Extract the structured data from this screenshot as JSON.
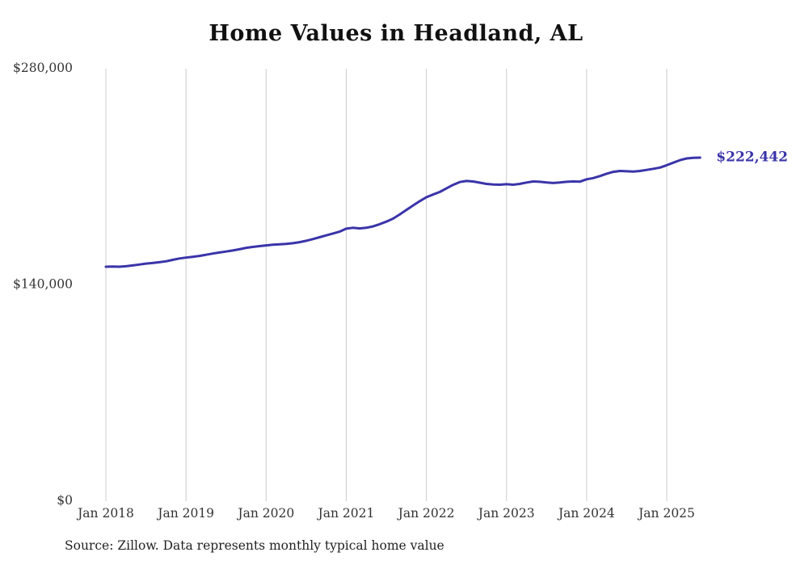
{
  "source": "Source: Zillow. Data represents monthly typical home value",
  "chart_data": {
    "type": "line",
    "title": "Home Values in Headland, AL",
    "xlabel": "",
    "ylabel": "",
    "ylim": [
      0,
      280000
    ],
    "grid": "vertical-year-lines",
    "legend": "none",
    "line_color": "#3a34a9",
    "gridline_color": "#cccccc",
    "text_color": "#333333",
    "end_label": "$222,442",
    "x_start_label": "Jan 2018",
    "x_end_label": "Jun 2025",
    "x_ticks": [
      "Jan 2018",
      "Jan 2019",
      "Jan 2020",
      "Jan 2021",
      "Jan 2022",
      "Jan 2023",
      "Jan 2024",
      "Jan 2025"
    ],
    "x_tick_month_indexes": [
      0,
      12,
      24,
      36,
      48,
      60,
      72,
      84
    ],
    "y_ticks": [
      {
        "value": 0,
        "label": "$0"
      },
      {
        "value": 140000,
        "label": "$140,000"
      },
      {
        "value": 280000,
        "label": "$280,000"
      }
    ],
    "series": [
      {
        "name": "Typical home value (monthly)",
        "values": [
          151800,
          151900,
          151800,
          152100,
          152600,
          153200,
          153800,
          154200,
          154700,
          155300,
          156200,
          157100,
          157700,
          158200,
          158800,
          159500,
          160300,
          161000,
          161600,
          162300,
          163100,
          164000,
          164600,
          165100,
          165600,
          166000,
          166300,
          166600,
          167000,
          167700,
          168600,
          169700,
          170900,
          172100,
          173300,
          174500,
          176400,
          177000,
          176600,
          177000,
          177900,
          179300,
          181000,
          182900,
          185600,
          188500,
          191400,
          194200,
          196800,
          198500,
          200200,
          202500,
          204800,
          206600,
          207300,
          207000,
          206200,
          205400,
          205000,
          204900,
          205200,
          204900,
          205400,
          206300,
          207000,
          206800,
          206300,
          206000,
          206300,
          206800,
          207000,
          206900,
          208400,
          209200,
          210500,
          212000,
          213200,
          213800,
          213600,
          213400,
          213800,
          214500,
          215200,
          216000,
          217500,
          219200,
          220800,
          221900,
          222300,
          222442
        ]
      }
    ]
  }
}
